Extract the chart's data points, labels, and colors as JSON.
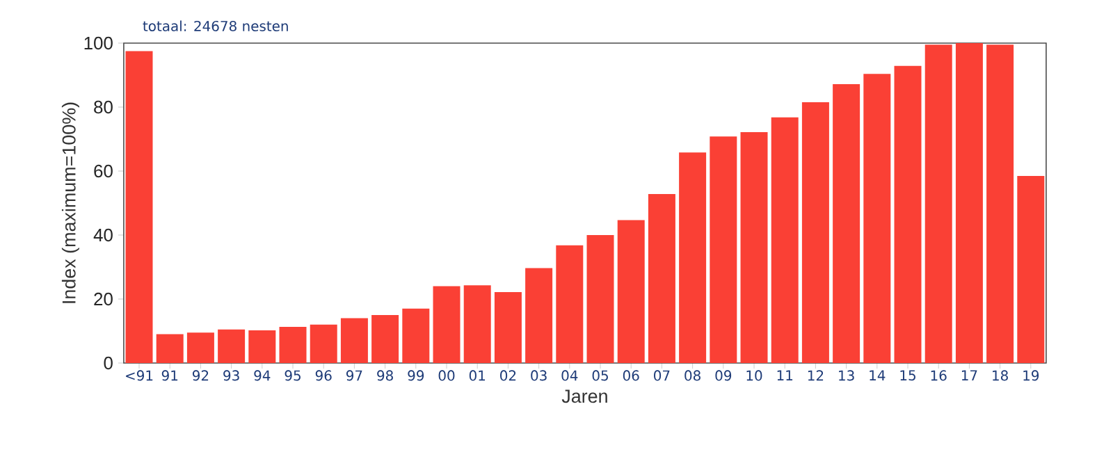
{
  "chart_data": {
    "type": "bar",
    "title": "totaal: 24678 nesten",
    "xlabel": "Jaren",
    "ylabel": "Index (maximum=100%)",
    "categories": [
      "<91",
      "91",
      "92",
      "93",
      "94",
      "95",
      "96",
      "97",
      "98",
      "99",
      "00",
      "01",
      "02",
      "03",
      "04",
      "05",
      "06",
      "07",
      "08",
      "09",
      "10",
      "11",
      "12",
      "13",
      "14",
      "15",
      "16",
      "17",
      "18",
      "19"
    ],
    "values": [
      97.5,
      9,
      9.5,
      10.5,
      10.2,
      11.3,
      12,
      14,
      15,
      17,
      24,
      24.3,
      22.2,
      29.7,
      36.8,
      40,
      44.7,
      52.8,
      65.8,
      70.8,
      72.2,
      76.8,
      81.5,
      87.2,
      90.4,
      92.9,
      99.5,
      100,
      99.5,
      58.5
    ],
    "color": "#fa4035",
    "ylim": [
      0,
      100
    ],
    "yticks": [
      0,
      20,
      40,
      60,
      80,
      100
    ],
    "grid": false
  }
}
